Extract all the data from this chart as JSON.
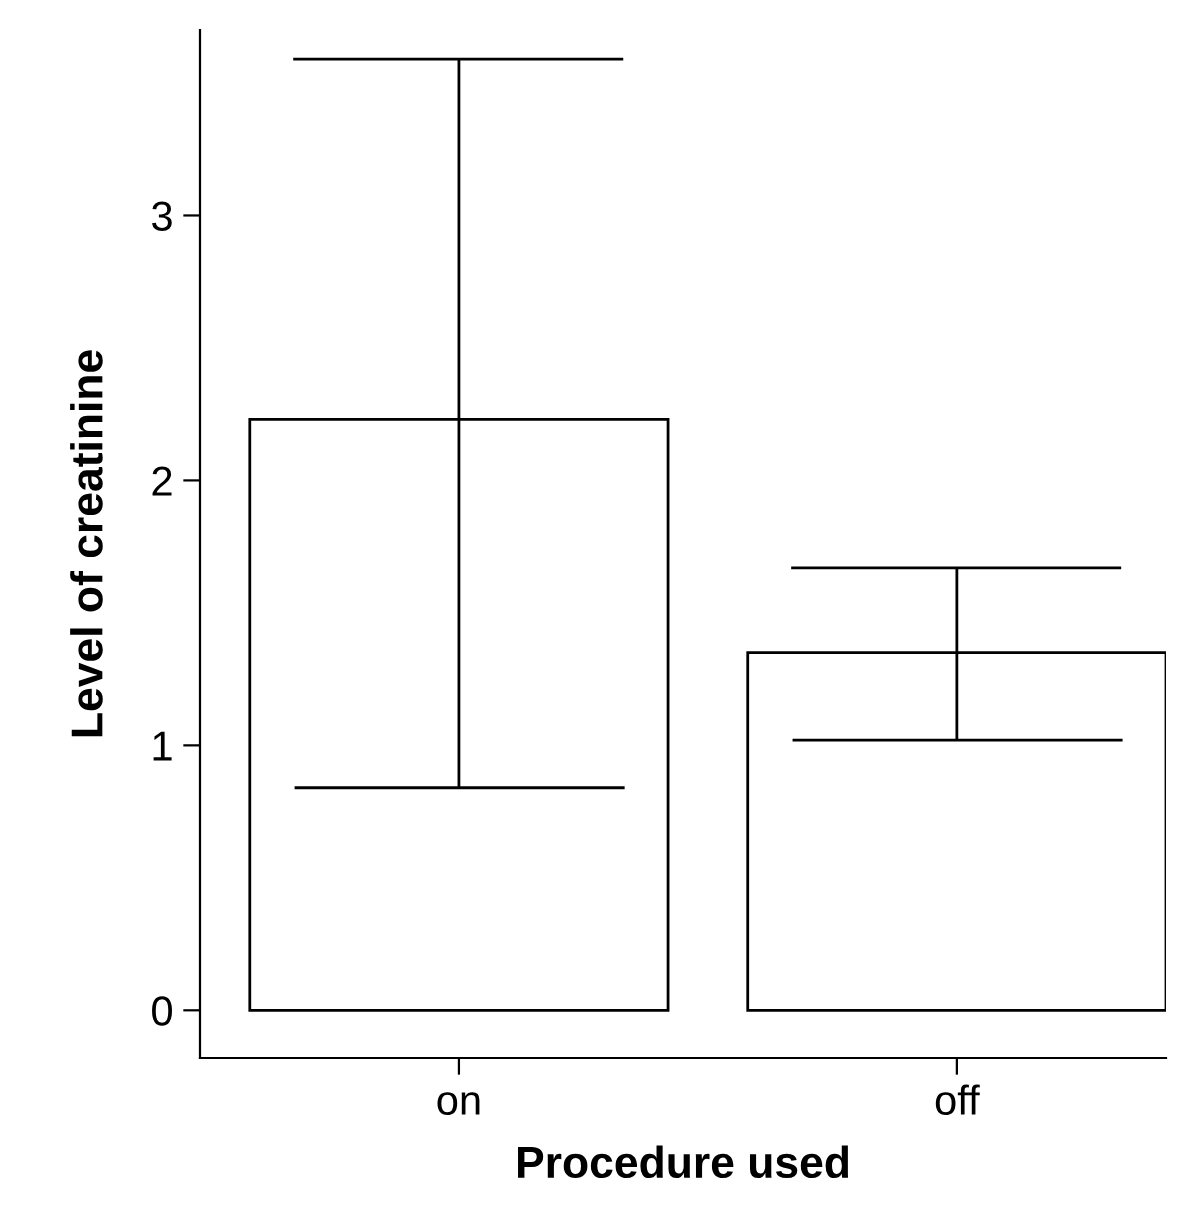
{
  "chart_data": {
    "type": "bar",
    "xlabel": "Procedure used",
    "ylabel": "Level of creatinine",
    "categories": [
      "on",
      "off"
    ],
    "values": [
      2.23,
      1.35
    ],
    "errors": [
      [
        0.84,
        3.59
      ],
      [
        1.02,
        1.67
      ]
    ],
    "color": "#ffffff",
    "ylim": [
      -0.18,
      3.7
    ],
    "yticks": [
      0,
      1,
      2,
      3
    ],
    "grid": false,
    "legend": false
  }
}
